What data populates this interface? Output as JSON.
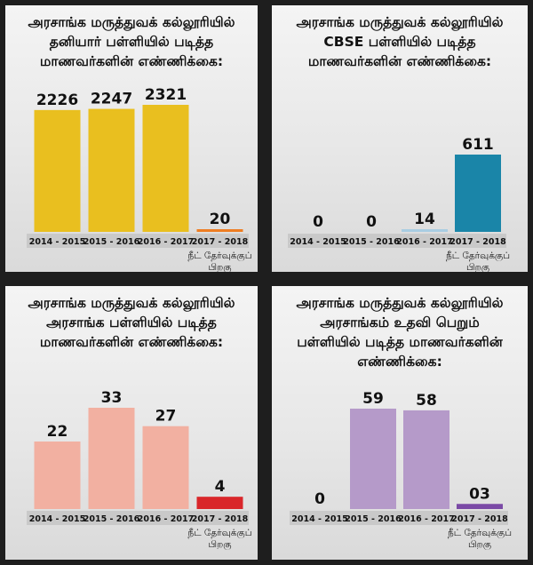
{
  "panels": [
    {
      "title_lines": [
        "அரசாங்க மருத்துவக் கல்லூரியில்",
        "தனியார் பள்ளியில் படித்த",
        "மாணவர்களின் எண்ணிக்கை:"
      ]
    },
    {
      "title_lines": [
        "அரசாங்க மருத்துவக் கல்லூரியில்",
        "CBSE பள்ளியில் படித்த",
        "மாணவர்களின் எண்ணிக்கை:"
      ]
    },
    {
      "title_lines": [
        "அரசாங்க மருத்துவக் கல்லூரியில்",
        "அரசாங்க பள்ளியில் படித்த",
        "மாணவர்களின் எண்ணிக்கை:"
      ]
    },
    {
      "title_lines": [
        "அரசாங்க மருத்துவக் கல்லூரியில்",
        "அரசாங்கம் உதவி பெறும்",
        "பள்ளியில் படித்த மாணவர்களின்",
        "எண்ணிக்கை:"
      ]
    }
  ],
  "neet_note": [
    "நீட் தேர்வுக்குப்",
    "பிறகு"
  ],
  "chart_data": [
    {
      "type": "bar",
      "categories": [
        "2014 - 2015",
        "2015 - 2016",
        "2016 - 2017",
        "2017 - 2018"
      ],
      "values": [
        2226,
        2247,
        2321,
        20
      ],
      "value_labels": [
        "2226",
        "2247",
        "2321",
        "20"
      ],
      "bar_colors": [
        "#e9bf1f",
        "#e9bf1f",
        "#e9bf1f",
        "#ee7d22"
      ],
      "ylim": [
        0,
        2321
      ]
    },
    {
      "type": "bar",
      "categories": [
        "2014 - 2015",
        "2015 - 2016",
        "2016 - 2017",
        "2017 - 2018"
      ],
      "values": [
        0,
        0,
        14,
        611
      ],
      "value_labels": [
        "0",
        "0",
        "14",
        "611"
      ],
      "bar_colors": [
        "#5ea1c9",
        "#5ea1c9",
        "#a9cde2",
        "#1a85a8"
      ],
      "ylim": [
        0,
        611
      ]
    },
    {
      "type": "bar",
      "categories": [
        "2014 - 2015",
        "2015 - 2016",
        "2016 - 2017",
        "2017 - 2018"
      ],
      "values": [
        22,
        33,
        27,
        4
      ],
      "value_labels": [
        "22",
        "33",
        "27",
        "4"
      ],
      "bar_colors": [
        "#f2b0a1",
        "#f2b0a1",
        "#f2b0a1",
        "#d9262a"
      ],
      "ylim": [
        0,
        33
      ]
    },
    {
      "type": "bar",
      "categories": [
        "2014 - 2015",
        "2015 - 2016",
        "2016 - 2017",
        "2017 - 2018"
      ],
      "values": [
        0,
        59,
        58,
        3
      ],
      "value_labels": [
        "0",
        "59",
        "58",
        "03"
      ],
      "bar_colors": [
        "#b59ac9",
        "#b59ac9",
        "#b59ac9",
        "#7b4aa6"
      ],
      "ylim": [
        0,
        59
      ]
    }
  ]
}
